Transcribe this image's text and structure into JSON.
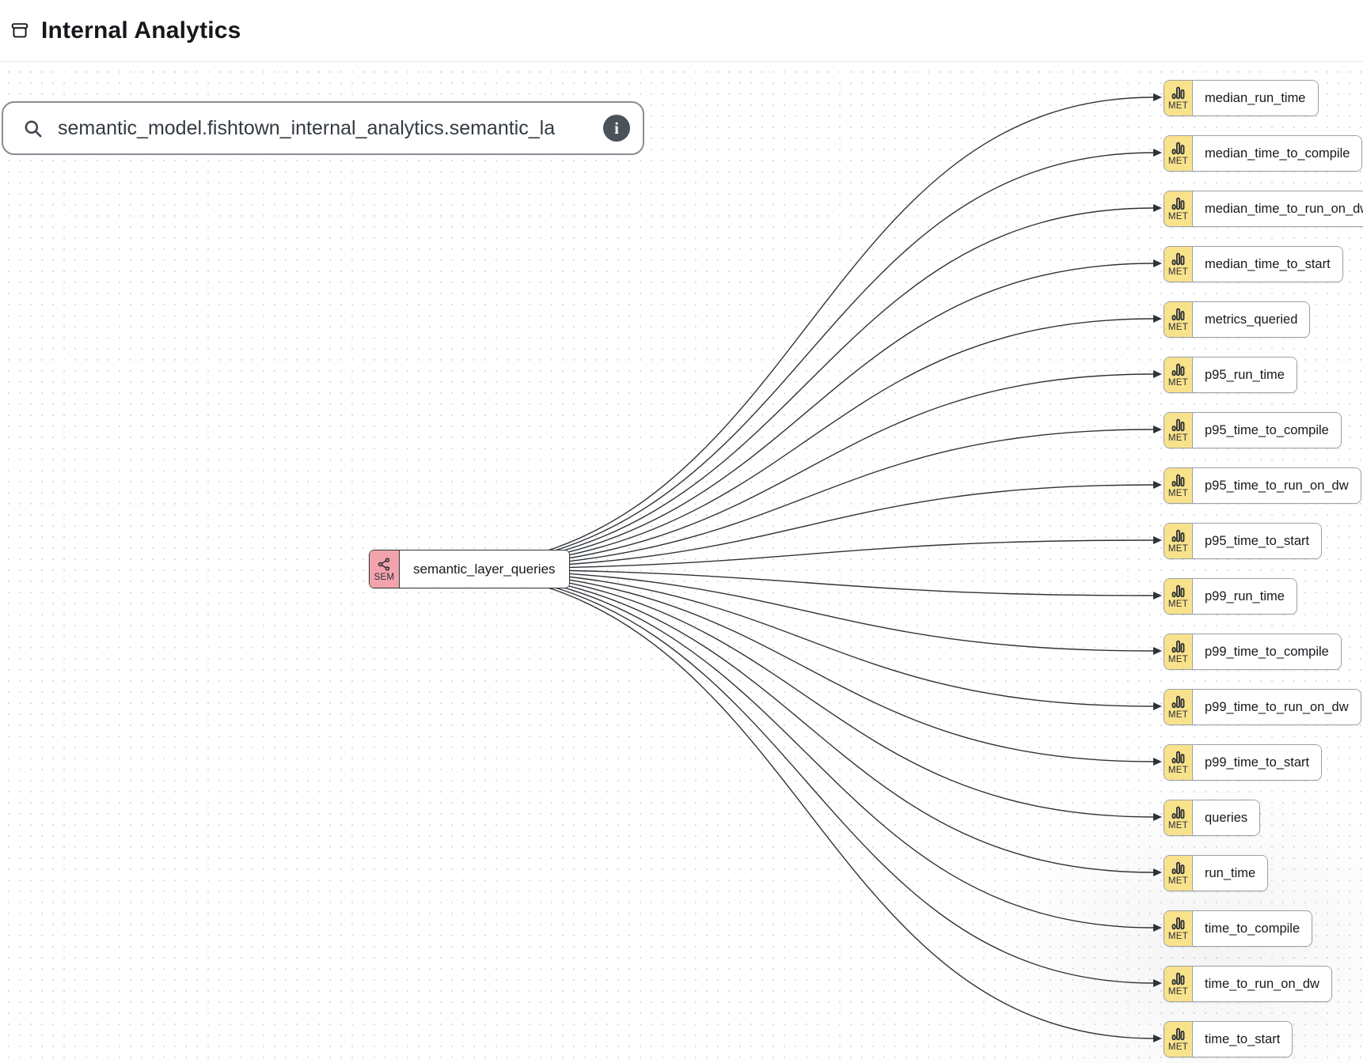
{
  "header": {
    "title": "Internal Analytics"
  },
  "search": {
    "value": "semantic_model.fishtown_internal_analytics.semantic_la",
    "info_label": "i"
  },
  "badges": {
    "semantic_model": "SEM",
    "metric": "MET"
  },
  "colors": {
    "met_badge_bg": "#F9E28C",
    "sem_badge_bg": "#F2A3AC",
    "met_border": "#9AA0A6",
    "sem_border": "#2F3439",
    "edge": "#2E3338",
    "canvas_dot": "#DEDEDE",
    "info_button_bg": "#4A525A"
  },
  "graph": {
    "source": {
      "badge": "SEM",
      "label": "semantic_layer_queries"
    },
    "metrics": [
      "median_run_time",
      "median_time_to_compile",
      "median_time_to_run_on_dw",
      "median_time_to_start",
      "metrics_queried",
      "p95_run_time",
      "p95_time_to_compile",
      "p95_time_to_run_on_dw",
      "p95_time_to_start",
      "p99_run_time",
      "p99_time_to_compile",
      "p99_time_to_run_on_dw",
      "p99_time_to_start",
      "queries",
      "run_time",
      "time_to_compile",
      "time_to_run_on_dw",
      "time_to_start"
    ]
  }
}
